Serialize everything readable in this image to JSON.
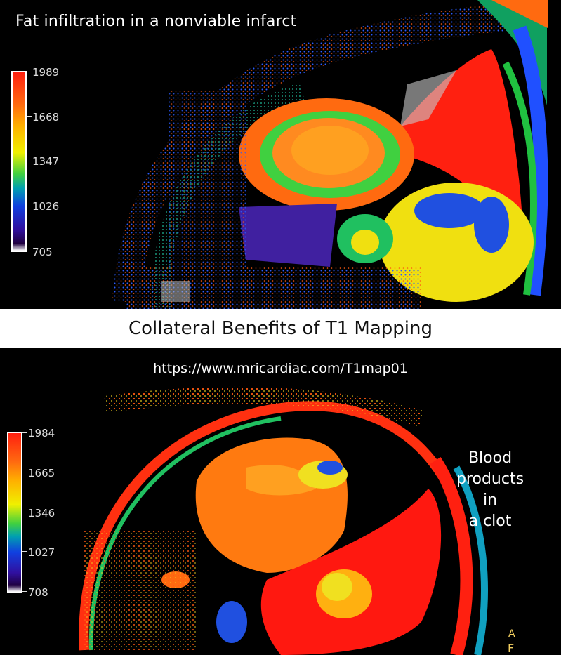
{
  "top_panel": {
    "caption": "Fat infiltration in a nonviable infarct",
    "scale_labels": [
      "1989",
      "1668",
      "1347",
      "1026",
      "705"
    ]
  },
  "title_band": {
    "title": "Collateral Benefits of T1 Mapping"
  },
  "bottom_panel": {
    "url": "https://www.mricardiac.com/T1map01",
    "caption_line1": "Blood",
    "caption_line2": "products in",
    "caption_line3": "a clot",
    "scale_labels": [
      "1984",
      "1665",
      "1346",
      "1027",
      "708"
    ],
    "orientation_letters": [
      "A",
      "F"
    ]
  },
  "colors": {
    "background": "#000000",
    "title_band": "#ffffff",
    "scale_high": "#ff2010",
    "scale_low": "#200040"
  }
}
